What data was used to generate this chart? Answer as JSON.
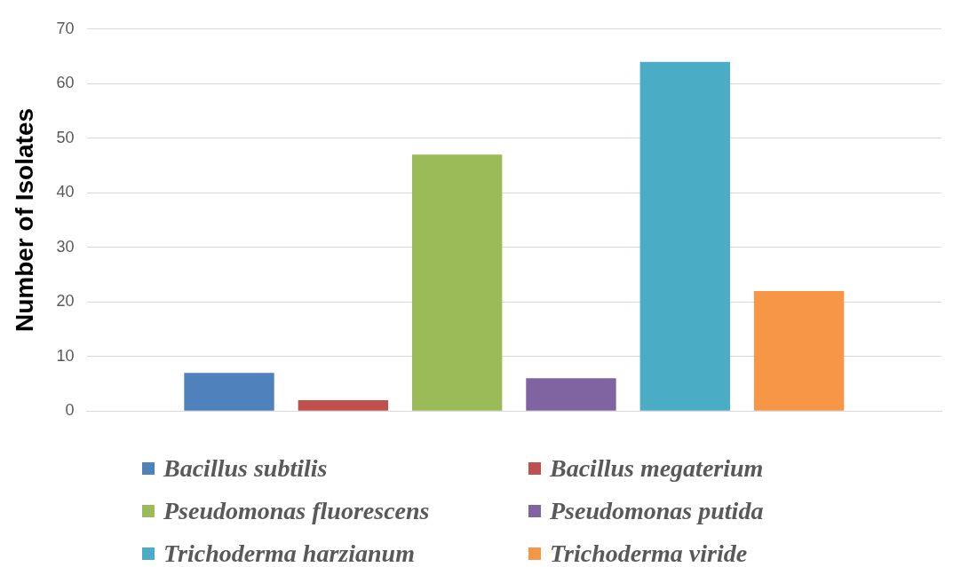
{
  "chart_data": {
    "type": "bar",
    "ylabel": "Number of Isolates",
    "categories": [
      null
    ],
    "series": [
      {
        "name": "Bacillus subtilis",
        "color": "#4f81bd",
        "values": [
          7
        ]
      },
      {
        "name": "Bacillus megaterium",
        "color": "#c0504d",
        "values": [
          2
        ]
      },
      {
        "name": "Pseudomonas fluorescens",
        "color": "#9bbb59",
        "values": [
          47
        ]
      },
      {
        "name": "Pseudomonas putida",
        "color": "#8064a2",
        "values": [
          6
        ]
      },
      {
        "name": "Trichoderma harzianum",
        "color": "#4bacc6",
        "values": [
          64
        ]
      },
      {
        "name": "Trichoderma viride",
        "color": "#f79646",
        "values": [
          22
        ]
      }
    ],
    "ylim": [
      0,
      70
    ],
    "yticks": [
      0,
      10,
      20,
      30,
      40,
      50,
      60,
      70
    ],
    "grid": "y",
    "legend": "bottom"
  }
}
